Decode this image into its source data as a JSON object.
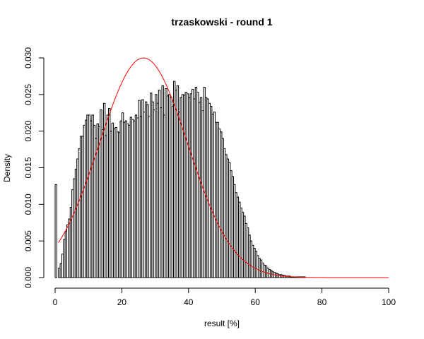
{
  "chart_data": {
    "type": "bar",
    "subtype": "histogram-density",
    "title": "trzaskowski - round 1",
    "xlabel": "result [%]",
    "ylabel": "Density",
    "xlim": [
      0,
      100
    ],
    "ylim": [
      0,
      0.03
    ],
    "x_ticks": [
      "0",
      "20",
      "40",
      "60",
      "80",
      "100"
    ],
    "y_ticks": [
      "0.000",
      "0.005",
      "0.010",
      "0.015",
      "0.020",
      "0.025",
      "0.030"
    ],
    "bin_width": 0.5,
    "bin_start": 0.0,
    "density": [
      0.0127,
      0.0,
      0.0013,
      0.0019,
      0.0032,
      0.0052,
      0.0063,
      0.0072,
      0.008,
      0.0096,
      0.012,
      0.0135,
      0.0148,
      0.0162,
      0.0176,
      0.0193,
      0.0193,
      0.0208,
      0.0215,
      0.0222,
      0.0222,
      0.0214,
      0.0222,
      0.0208,
      0.019,
      0.021,
      0.0206,
      0.0229,
      0.0202,
      0.0238,
      0.0194,
      0.0222,
      0.0231,
      0.02,
      0.0211,
      0.0203,
      0.0205,
      0.0199,
      0.0198,
      0.0214,
      0.0225,
      0.0212,
      0.0214,
      0.021,
      0.0208,
      0.0219,
      0.0216,
      0.0214,
      0.0222,
      0.0218,
      0.0242,
      0.022,
      0.0243,
      0.0226,
      0.024,
      0.0236,
      0.022,
      0.0252,
      0.024,
      0.0229,
      0.025,
      0.0238,
      0.0256,
      0.0232,
      0.0262,
      0.0222,
      0.0258,
      0.0248,
      0.025,
      0.0246,
      0.0234,
      0.0268,
      0.0256,
      0.0262,
      0.0226,
      0.0246,
      0.025,
      0.0249,
      0.0253,
      0.0251,
      0.0246,
      0.0251,
      0.0257,
      0.0244,
      0.026,
      0.0253,
      0.0239,
      0.0246,
      0.0228,
      0.026,
      0.0246,
      0.0244,
      0.0238,
      0.0234,
      0.0223,
      0.0226,
      0.0212,
      0.0212,
      0.0203,
      0.0199,
      0.019,
      0.0176,
      0.0168,
      0.0162,
      0.0157,
      0.0146,
      0.0138,
      0.0127,
      0.0116,
      0.011,
      0.0103,
      0.0095,
      0.0089,
      0.0084,
      0.0074,
      0.0068,
      0.0058,
      0.005,
      0.0044,
      0.004,
      0.0036,
      0.003,
      0.0026,
      0.0024,
      0.002,
      0.0017,
      0.0016,
      0.0013,
      0.0011,
      0.001,
      0.0008,
      0.0007,
      0.0006,
      0.0005,
      0.0004,
      0.0004,
      0.0003,
      0.0003,
      0.0002,
      0.0002,
      0.0002,
      0.0001,
      0.0001,
      0.0001,
      0.0001,
      0.0001,
      0.0001,
      0.0001,
      0.0001,
      0.0001
    ],
    "curve": {
      "type": "normal",
      "color": "#ff0000",
      "mean": 26.5,
      "sd": 13.3,
      "x_from": 1,
      "x_to": 100
    }
  }
}
